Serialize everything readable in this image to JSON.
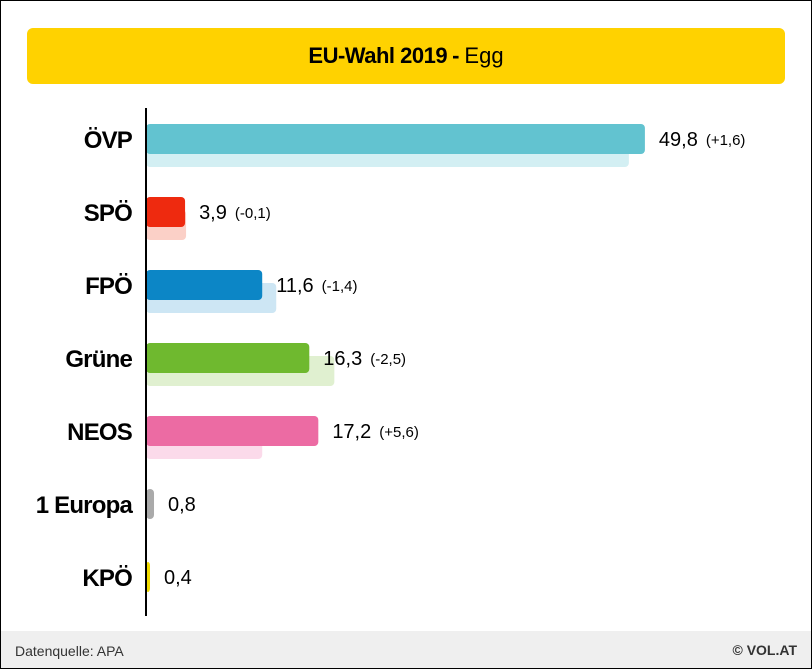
{
  "chart_data": {
    "type": "bar",
    "orientation": "horizontal",
    "title": "EU-Wahl 2019",
    "title_separator": "-",
    "subtitle": "Egg",
    "categories": [
      "ÖVP",
      "SPÖ",
      "FPÖ",
      "Grüne",
      "NEOS",
      "1 Europa",
      "KPÖ"
    ],
    "series": [
      {
        "values": [
          49.8,
          3.9,
          11.6,
          16.3,
          17.2,
          0.8,
          0.4
        ]
      },
      {
        "values": [
          48.2,
          4.0,
          13.0,
          18.8,
          11.6,
          null,
          null
        ]
      }
    ],
    "value_labels": [
      "49,8",
      "3,9",
      "11,6",
      "16,3",
      "17,2",
      "0,8",
      "0,4"
    ],
    "diff_labels": [
      "(+1,6)",
      "(-0,1)",
      "(-1,4)",
      "(-2,5)",
      "(+5,6)",
      "",
      ""
    ],
    "colors": [
      "#62c3d0",
      "#ee2a0f",
      "#0c86c6",
      "#6fb92f",
      "#ec6ba3",
      "#aaaaaa",
      "#f2dc00"
    ],
    "prev_colors": [
      "#d3eff3",
      "#fbd0c7",
      "#cde6f4",
      "#e0f0d0",
      "#fbdaea",
      "#e4e4e4",
      "#fbf5c0"
    ],
    "xlim": [
      0,
      55
    ],
    "grid": false,
    "legend": "none"
  },
  "footer": {
    "source": "Datenquelle: APA",
    "copyright": "© VOL.AT"
  }
}
